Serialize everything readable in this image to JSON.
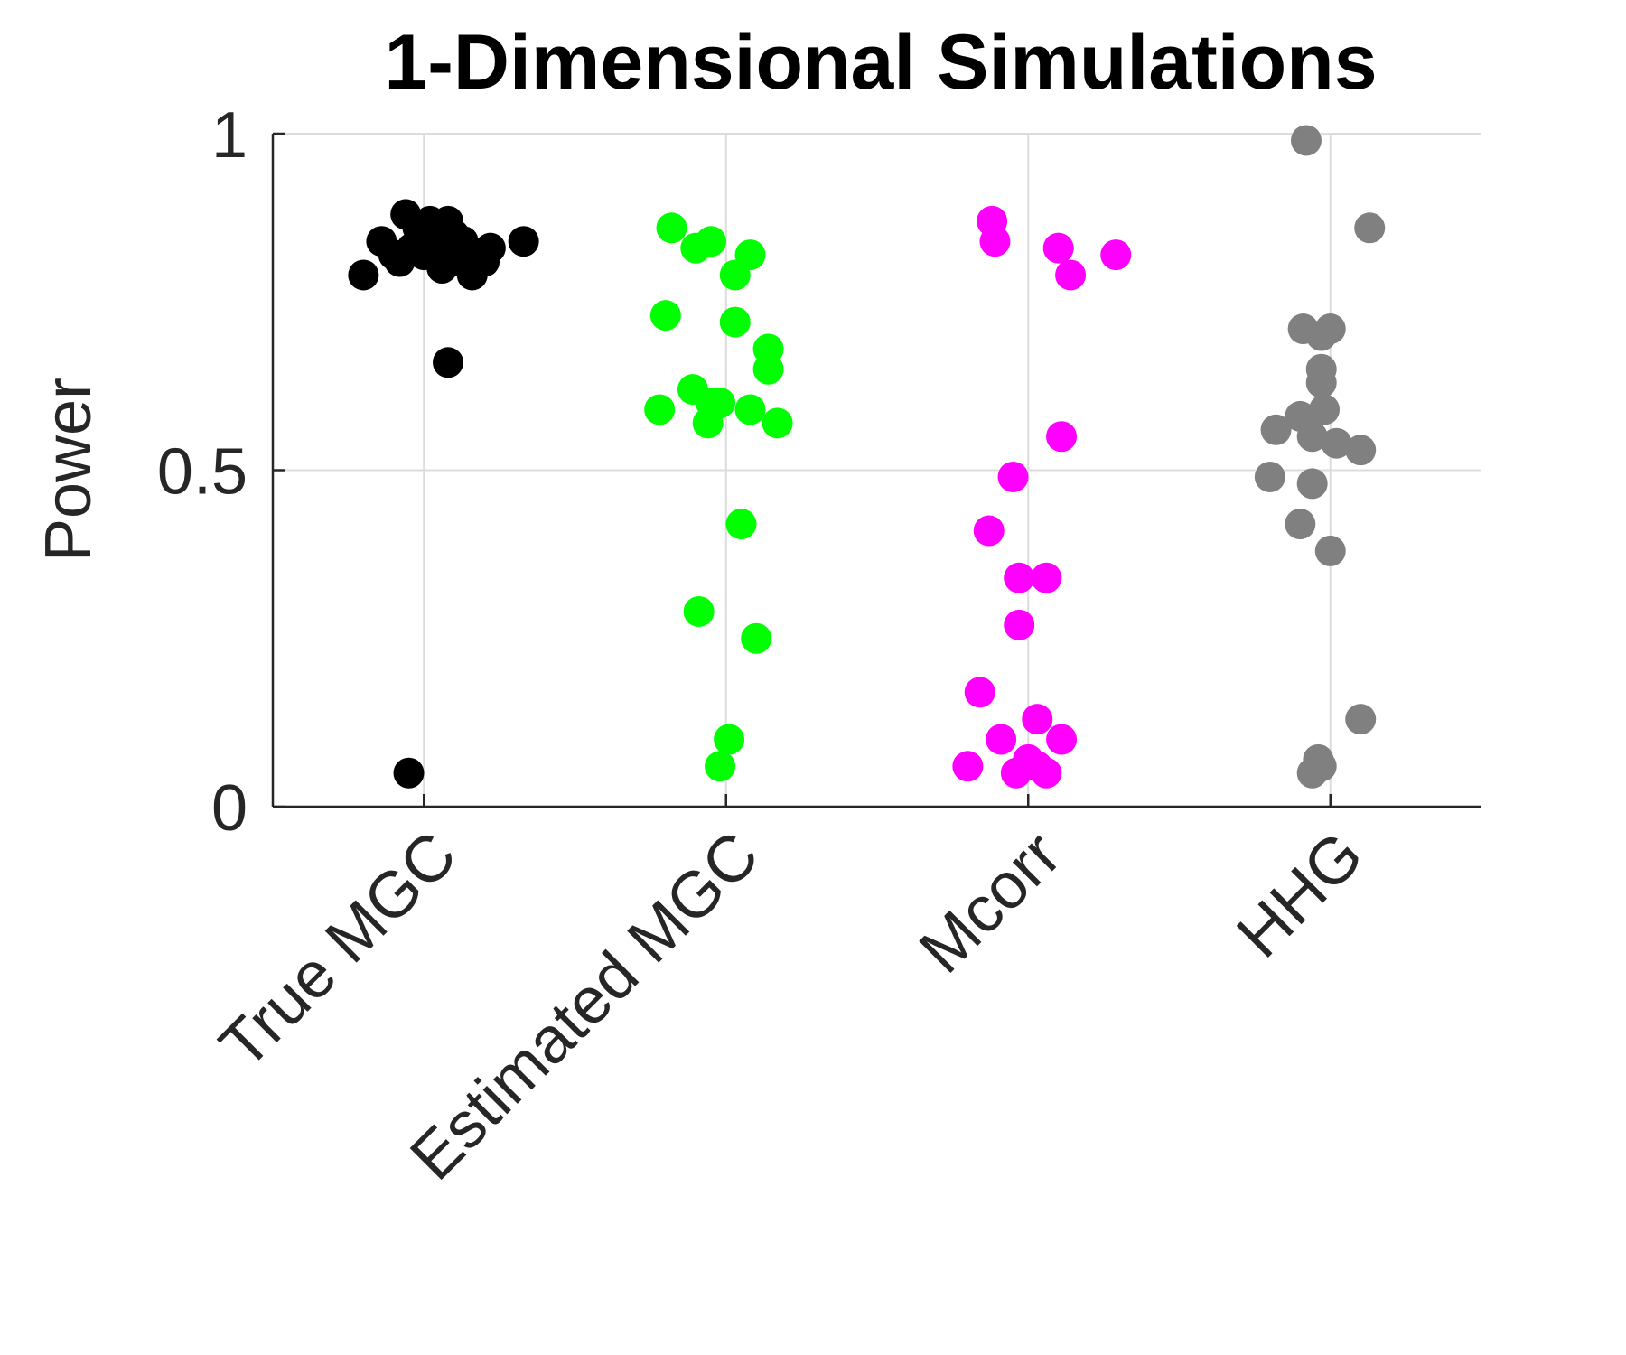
{
  "chart_data": {
    "type": "scatter",
    "title": "1-Dimensional Simulations",
    "xlabel": "",
    "ylabel": "Power",
    "ylim": [
      0,
      1
    ],
    "yticks": [
      "0",
      "0.5",
      "1"
    ],
    "categories": [
      "True MGC",
      "Estimated MGC",
      "Mcorr",
      "HHG"
    ],
    "grid": true,
    "series": [
      {
        "color": "#000000",
        "points": [
          [
            -0.2,
            0.79
          ],
          [
            -0.1,
            0.82
          ],
          [
            -0.14,
            0.84
          ],
          [
            -0.06,
            0.88
          ],
          [
            -0.02,
            0.86
          ],
          [
            0.02,
            0.87
          ],
          [
            0.0,
            0.84
          ],
          [
            0.04,
            0.83
          ],
          [
            0.08,
            0.87
          ],
          [
            0.1,
            0.85
          ],
          [
            0.13,
            0.84
          ],
          [
            -0.08,
            0.81
          ],
          [
            -0.04,
            0.83
          ],
          [
            0.06,
            0.8
          ],
          [
            0.12,
            0.81
          ],
          [
            0.16,
            0.79
          ],
          [
            0.2,
            0.81
          ],
          [
            0.22,
            0.83
          ],
          [
            0.33,
            0.84
          ],
          [
            0.08,
            0.66
          ],
          [
            -0.05,
            0.05
          ],
          [
            0.0,
            0.82
          ]
        ]
      },
      {
        "color": "#00ff00",
        "points": [
          [
            -0.18,
            0.86
          ],
          [
            -0.1,
            0.83
          ],
          [
            -0.05,
            0.84
          ],
          [
            0.03,
            0.79
          ],
          [
            0.08,
            0.82
          ],
          [
            -0.2,
            0.73
          ],
          [
            0.03,
            0.72
          ],
          [
            0.14,
            0.68
          ],
          [
            0.14,
            0.65
          ],
          [
            -0.11,
            0.62
          ],
          [
            -0.05,
            0.6
          ],
          [
            -0.02,
            0.6
          ],
          [
            -0.22,
            0.59
          ],
          [
            0.08,
            0.59
          ],
          [
            -0.06,
            0.57
          ],
          [
            0.17,
            0.57
          ],
          [
            0.05,
            0.42
          ],
          [
            -0.09,
            0.29
          ],
          [
            0.1,
            0.25
          ],
          [
            0.01,
            0.1
          ],
          [
            -0.02,
            0.06
          ]
        ]
      },
      {
        "color": "#ff00ff",
        "points": [
          [
            -0.12,
            0.87
          ],
          [
            -0.11,
            0.84
          ],
          [
            0.1,
            0.83
          ],
          [
            0.14,
            0.79
          ],
          [
            0.29,
            0.82
          ],
          [
            0.11,
            0.55
          ],
          [
            -0.05,
            0.49
          ],
          [
            -0.13,
            0.41
          ],
          [
            -0.03,
            0.34
          ],
          [
            0.06,
            0.34
          ],
          [
            -0.03,
            0.27
          ],
          [
            -0.16,
            0.17
          ],
          [
            0.03,
            0.13
          ],
          [
            -0.09,
            0.1
          ],
          [
            0.11,
            0.1
          ],
          [
            -0.2,
            0.06
          ],
          [
            -0.04,
            0.05
          ],
          [
            0.0,
            0.07
          ],
          [
            0.03,
            0.06
          ],
          [
            0.06,
            0.05
          ]
        ]
      },
      {
        "color": "#808080",
        "points": [
          [
            -0.08,
            0.99
          ],
          [
            0.13,
            0.86
          ],
          [
            -0.09,
            0.71
          ],
          [
            -0.03,
            0.7
          ],
          [
            0.0,
            0.71
          ],
          [
            -0.03,
            0.65
          ],
          [
            -0.03,
            0.63
          ],
          [
            -0.1,
            0.58
          ],
          [
            -0.02,
            0.59
          ],
          [
            -0.18,
            0.56
          ],
          [
            -0.06,
            0.55
          ],
          [
            0.02,
            0.54
          ],
          [
            0.1,
            0.53
          ],
          [
            -0.2,
            0.49
          ],
          [
            -0.06,
            0.48
          ],
          [
            -0.1,
            0.42
          ],
          [
            0.0,
            0.38
          ],
          [
            0.1,
            0.13
          ],
          [
            -0.04,
            0.07
          ],
          [
            -0.03,
            0.06
          ],
          [
            -0.06,
            0.05
          ]
        ]
      }
    ]
  }
}
